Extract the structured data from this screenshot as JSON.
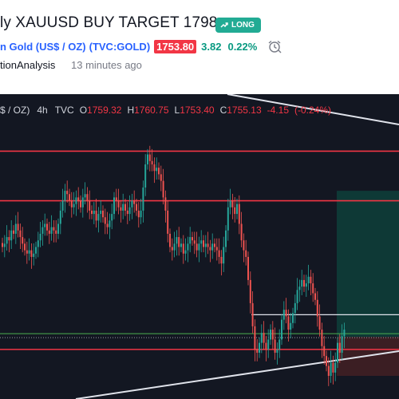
{
  "idea": {
    "title": "ly XAUUSD BUY TARGET 1798",
    "badge": "LONG",
    "symbol_name": "n Gold (US$ / OZ)",
    "symbol_ticker": "(TVC:GOLD)",
    "last_price": "1753.80",
    "change": "3.82",
    "change_pct": "0.22%",
    "author": "tionAnalysis",
    "time_ago": "13 minutes ago"
  },
  "colors": {
    "up": "#26a69a",
    "down": "#ef5350",
    "level_line": "#f23645",
    "long_badge": "#22ab94",
    "target_zone": "#0e3b38",
    "stop_zone": "#3d1f24",
    "background": "#131722"
  },
  "chart_data": {
    "type": "candlestick",
    "timeframe": "4h",
    "source": "TVC",
    "symbol_label": "$ / OZ)",
    "ohlc_legend": {
      "open": "1759.32",
      "high": "1760.75",
      "low": "1753.40",
      "close": "1755.13",
      "change": "-4.15",
      "change_pct": "(-0.24%)"
    },
    "ylim": [
      1735,
      1820
    ],
    "trend_up": "up",
    "levels": [
      1810,
      1795,
      1756,
      1750
    ],
    "position": {
      "entry": 1753.8,
      "target": 1798,
      "stop": 1742
    },
    "closes": [
      1781,
      1782,
      1784,
      1783,
      1786,
      1785,
      1788,
      1786,
      1784,
      1782,
      1780,
      1779,
      1780,
      1778,
      1779,
      1781,
      1783,
      1785,
      1787,
      1788,
      1786,
      1785,
      1787,
      1786,
      1785,
      1788,
      1792,
      1795,
      1798,
      1797,
      1795,
      1793,
      1794,
      1796,
      1795,
      1793,
      1796,
      1797,
      1795,
      1792,
      1791,
      1792,
      1789,
      1791,
      1792,
      1790,
      1788,
      1787,
      1789,
      1791,
      1796,
      1795,
      1793,
      1792,
      1794,
      1792,
      1791,
      1793,
      1795,
      1794,
      1792,
      1790,
      1792,
      1799,
      1806,
      1809,
      1807,
      1806,
      1804,
      1805,
      1803,
      1801,
      1796,
      1792,
      1785,
      1781,
      1780,
      1782,
      1784,
      1781,
      1782,
      1779,
      1780,
      1782,
      1784,
      1783,
      1782,
      1780,
      1782,
      1783,
      1781,
      1782,
      1781,
      1780,
      1782,
      1781,
      1780,
      1778,
      1776,
      1781,
      1786,
      1793,
      1795,
      1793,
      1791,
      1794,
      1788,
      1783,
      1780,
      1778,
      1771,
      1764,
      1757,
      1750,
      1749,
      1752,
      1755,
      1752,
      1750,
      1753,
      1756,
      1753,
      1749,
      1750,
      1753,
      1759,
      1762,
      1760,
      1756,
      1758,
      1761,
      1764,
      1768,
      1769,
      1771,
      1769,
      1770,
      1772,
      1770,
      1767,
      1765,
      1760,
      1756,
      1751,
      1748,
      1745,
      1742,
      1746,
      1743,
      1746,
      1752,
      1749,
      1754,
      1756
    ]
  }
}
